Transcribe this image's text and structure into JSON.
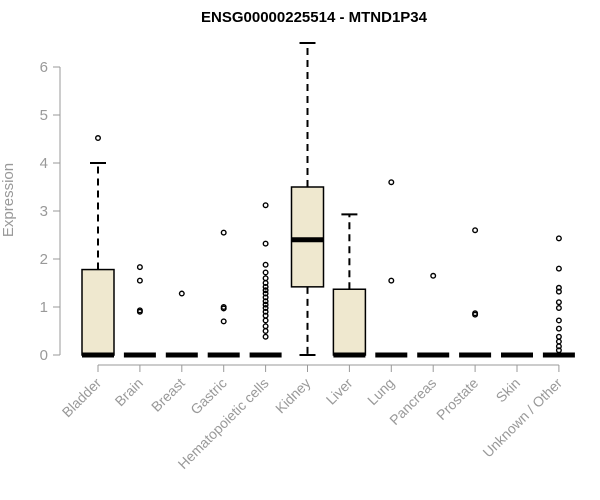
{
  "chart_data": {
    "type": "boxplot",
    "title": "ENSG00000225514 - MTND1P34",
    "xlabel": "",
    "ylabel": "Expression",
    "ylim": [
      0,
      6.5
    ],
    "yticks": [
      "0",
      "1",
      "2",
      "3",
      "4",
      "5",
      "6"
    ],
    "grid": false,
    "box_color": "#EFE8CF",
    "categories": [
      "Bladder",
      "Brain",
      "Breast",
      "Gastric",
      "Hematopoietic cells",
      "Kidney",
      "Liver",
      "Lung",
      "Pancreas",
      "Prostate",
      "Skin",
      "Unknown / Other"
    ],
    "boxes": [
      {
        "q1": 0,
        "median": 0,
        "q3": 1.78,
        "whisker_low": 0,
        "whisker_high": 4.0,
        "outliers": [
          4.52
        ]
      },
      {
        "q1": 0,
        "median": 0,
        "q3": 0,
        "whisker_low": 0,
        "whisker_high": 0,
        "outliers": [
          1.83,
          1.55,
          0.93,
          0.9
        ]
      },
      {
        "q1": 0,
        "median": 0,
        "q3": 0,
        "whisker_low": 0,
        "whisker_high": 0,
        "outliers": [
          1.28
        ]
      },
      {
        "q1": 0,
        "median": 0,
        "q3": 0,
        "whisker_low": 0,
        "whisker_high": 0,
        "outliers": [
          2.55,
          1.0,
          0.97,
          0.7
        ]
      },
      {
        "q1": 0,
        "median": 0,
        "q3": 0,
        "whisker_low": 0,
        "whisker_high": 0,
        "outliers": [
          3.12,
          2.32,
          1.88,
          1.72,
          1.6,
          1.5,
          1.42,
          1.35,
          1.28,
          1.2,
          1.12,
          1.05,
          0.98,
          0.9,
          0.82,
          0.72,
          0.6,
          0.5,
          0.38
        ]
      },
      {
        "q1": 1.42,
        "median": 2.4,
        "q3": 3.5,
        "whisker_low": 0,
        "whisker_high": 6.5,
        "outliers": []
      },
      {
        "q1": 0,
        "median": 0,
        "q3": 1.37,
        "whisker_low": 0,
        "whisker_high": 2.93,
        "outliers": []
      },
      {
        "q1": 0,
        "median": 0,
        "q3": 0,
        "whisker_low": 0,
        "whisker_high": 0,
        "outliers": [
          3.6,
          1.55
        ]
      },
      {
        "q1": 0,
        "median": 0,
        "q3": 0,
        "whisker_low": 0,
        "whisker_high": 0,
        "outliers": [
          1.65
        ]
      },
      {
        "q1": 0,
        "median": 0,
        "q3": 0,
        "whisker_low": 0,
        "whisker_high": 0,
        "outliers": [
          2.6,
          0.87,
          0.84
        ]
      },
      {
        "q1": 0,
        "median": 0,
        "q3": 0,
        "whisker_low": 0,
        "whisker_high": 0,
        "outliers": []
      },
      {
        "q1": 0,
        "median": 0,
        "q3": 0,
        "whisker_low": 0,
        "whisker_high": 0,
        "outliers": [
          2.43,
          1.8,
          1.4,
          1.32,
          1.1,
          0.98,
          0.72,
          0.55,
          0.38,
          0.28,
          0.18,
          0.1
        ]
      }
    ]
  }
}
